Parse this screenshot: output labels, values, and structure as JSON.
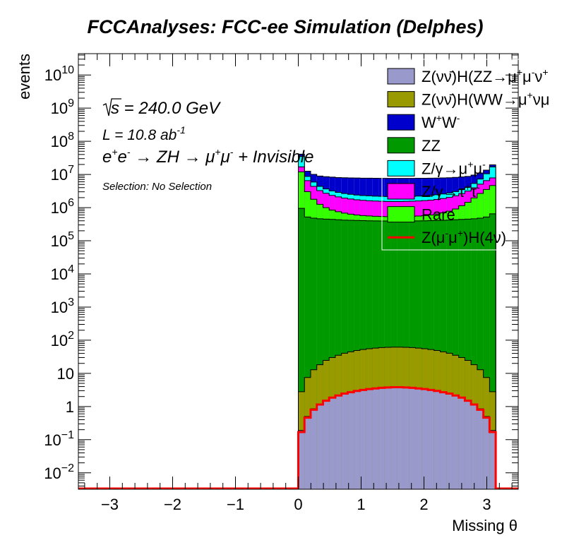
{
  "chart_data": {
    "type": "bar",
    "stacked": true,
    "title": "FCCAnalyses: FCC-ee Simulation (Delphes)",
    "xlabel": "Missing θ",
    "ylabel": "events",
    "yscale": "log",
    "xlim": [
      -3.5,
      3.5
    ],
    "ylim": [
      0.0032,
      44000000000.0
    ],
    "x_ticks": [
      "−3",
      "−2",
      "−1",
      "0",
      "1",
      "2",
      "3"
    ],
    "x_tick_values": [
      -3,
      -2,
      -1,
      0,
      1,
      2,
      3
    ],
    "y_ticks": [
      {
        "base": "10",
        "exp": "−2",
        "value": 0.01
      },
      {
        "base": "10",
        "exp": "−1",
        "value": 0.1
      },
      {
        "base": "1",
        "exp": "",
        "value": 1
      },
      {
        "base": "10",
        "exp": "",
        "value": 10
      },
      {
        "base": "10",
        "exp": "2",
        "value": 100
      },
      {
        "base": "10",
        "exp": "3",
        "value": 1000
      },
      {
        "base": "10",
        "exp": "4",
        "value": 10000
      },
      {
        "base": "10",
        "exp": "5",
        "value": 100000
      },
      {
        "base": "10",
        "exp": "6",
        "value": 1000000
      },
      {
        "base": "10",
        "exp": "7",
        "value": 10000000
      },
      {
        "base": "10",
        "exp": "8",
        "value": 100000000
      },
      {
        "base": "10",
        "exp": "9",
        "value": 1000000000
      },
      {
        "base": "10",
        "exp": "10",
        "value": 10000000000
      }
    ],
    "bins": {
      "start": 0,
      "end": 3.1416,
      "count": 32
    },
    "annotations": {
      "sqrt_s": "√s = 240.0 GeV",
      "sqrt_s_parts": {
        "root": "√",
        "s": "s",
        "rest": " = 240.0 GeV"
      },
      "lumi": {
        "text": "L = 10.8 ab",
        "sup": "-1"
      },
      "process": {
        "p1": "e",
        "s1": "+",
        "p2": "e",
        "s2": "-",
        "p3": " → ZH → μ",
        "s3": "+",
        "p4": "μ",
        "s4": "-",
        "p5": " + Invisible"
      },
      "selection": "Selection: No Selection"
    },
    "legend": {
      "position": "top-right",
      "entries": [
        {
          "label": "Z(νν̄)H(ZZ→μ⁺μ⁻ν⁺",
          "parts": [
            "Z(ν",
            "ν̄",
            ")H(ZZ→μ",
            "+",
            "μ",
            "-",
            "ν",
            "+"
          ],
          "type": "fill",
          "color": "#9999cc"
        },
        {
          "label": "Z(νν̄)H(WW→μ⁺νμ",
          "parts": [
            "Z(ν",
            "ν̄",
            ")H(WW→μ",
            "+",
            "νμ"
          ],
          "type": "fill",
          "color": "#999900"
        },
        {
          "label": "W⁺W⁻",
          "parts": [
            "W",
            "+",
            "W",
            "-"
          ],
          "type": "fill",
          "color": "#0000cc"
        },
        {
          "label": "ZZ",
          "parts": [
            "ZZ"
          ],
          "type": "fill",
          "color": "#009900"
        },
        {
          "label": "Z/γ→μ⁺μ⁻",
          "parts": [
            "Z/γ→μ",
            "+",
            "μ",
            "-"
          ],
          "type": "fill",
          "color": "#00ffff"
        },
        {
          "label": "Z/γ→τ⁺τ⁻",
          "parts": [
            "Z/γ→τ",
            "+",
            "τ",
            "-"
          ],
          "type": "fill",
          "color": "#ff00ff"
        },
        {
          "label": "Rare",
          "parts": [
            "Rare"
          ],
          "type": "fill",
          "color": "#33ff00"
        },
        {
          "label": "Z(μ⁻μ⁺)H(4ν)",
          "parts": [
            "Z(μ",
            "-",
            "μ",
            "+",
            ")H(4ν)"
          ],
          "type": "line",
          "color": "#ff0000"
        }
      ]
    },
    "series": [
      {
        "name": "Z(νν̄)H(ZZ→μ⁺μ⁻ν⁺",
        "color": "#9999cc",
        "values": [
          0.19,
          0.5,
          0.85,
          1.2,
          1.55,
          1.9,
          2.2,
          2.5,
          2.75,
          3.0,
          3.2,
          3.4,
          3.55,
          3.7,
          3.8,
          3.88,
          3.88,
          3.8,
          3.7,
          3.55,
          3.4,
          3.2,
          3.0,
          2.75,
          2.5,
          2.2,
          1.9,
          1.55,
          1.2,
          0.85,
          0.5,
          0.19
        ]
      },
      {
        "name": "Z(νν̄)H(WW→μ⁺νμ",
        "color": "#999900",
        "values": [
          2.6,
          7,
          12,
          17,
          23,
          28,
          33,
          38,
          42,
          46,
          49,
          52,
          54,
          56,
          57,
          58,
          58,
          57,
          56,
          54,
          52,
          49,
          46,
          42,
          38,
          33,
          28,
          23,
          17,
          12,
          7,
          2.6
        ]
      },
      {
        "name": "ZZ",
        "color": "#009900",
        "values": [
          950000,
          520000,
          480000,
          460000,
          450000,
          440000,
          430000,
          420000,
          415000,
          410000,
          405000,
          400000,
          398000,
          396000,
          395000,
          394000,
          394000,
          395000,
          396000,
          398000,
          400000,
          405000,
          410000,
          415000,
          420000,
          430000,
          440000,
          450000,
          460000,
          480000,
          520000,
          650000
        ]
      },
      {
        "name": "Rare",
        "color": "#33ff00",
        "values": [
          11000000,
          2500000,
          1300000,
          800000,
          550000,
          400000,
          320000,
          260000,
          220000,
          190000,
          170000,
          160000,
          150000,
          145000,
          140000,
          138000,
          140000,
          145000,
          150000,
          160000,
          175000,
          195000,
          230000,
          280000,
          360000,
          480000,
          700000,
          1000000,
          1500000,
          2200000,
          3000000,
          4000000
        ]
      },
      {
        "name": "Z/γ→τ⁺τ⁻",
        "color": "#ff00ff",
        "values": [
          5000000,
          3500000,
          2600000,
          2000000,
          1700000,
          1500000,
          1350000,
          1250000,
          1180000,
          1120000,
          1080000,
          1050000,
          1030000,
          1010000,
          1000000,
          990000,
          990000,
          1000000,
          1010000,
          1030000,
          1050000,
          1080000,
          1120000,
          1180000,
          1250000,
          1350000,
          1500000,
          1700000,
          2000000,
          2400000,
          3000000,
          3200000
        ]
      },
      {
        "name": "Z/γ→μ⁺μ⁻",
        "color": "#00ffff",
        "values": [
          18000000,
          2200000,
          1500000,
          1100000,
          950000,
          850000,
          780000,
          730000,
          700000,
          680000,
          660000,
          650000,
          640000,
          630000,
          625000,
          620000,
          620000,
          625000,
          630000,
          640000,
          650000,
          660000,
          680000,
          700000,
          730000,
          780000,
          850000,
          1000000,
          1400000,
          2200000,
          4000000,
          9000000
        ]
      },
      {
        "name": "W⁺W⁻",
        "color": "#0000cc",
        "values": [
          6000000,
          3800000,
          4200000,
          4600000,
          4900000,
          5100000,
          5200000,
          5300000,
          5350000,
          5400000,
          5420000,
          5440000,
          5450000,
          5460000,
          5470000,
          5470000,
          5470000,
          5460000,
          5450000,
          5440000,
          5420000,
          5400000,
          5350000,
          5300000,
          5200000,
          5100000,
          4900000,
          4600000,
          4200000,
          3800000,
          3000000,
          2600000
        ]
      },
      {
        "name": "Z(μ⁻μ⁺)H(4ν)",
        "color": "#ff0000",
        "type": "line",
        "values": [
          0.17,
          0.46,
          0.8,
          1.15,
          1.5,
          1.85,
          2.15,
          2.45,
          2.7,
          2.95,
          3.15,
          3.35,
          3.5,
          3.65,
          3.75,
          3.83,
          3.83,
          3.75,
          3.65,
          3.5,
          3.35,
          3.15,
          2.95,
          2.7,
          2.45,
          2.15,
          1.85,
          1.5,
          1.15,
          0.8,
          0.46,
          0.17
        ]
      }
    ],
    "stack_order": [
      "Z(νν̄)H(ZZ→μ⁺μ⁻ν⁺",
      "Z(νν̄)H(WW→μ⁺νμ",
      "ZZ",
      "Rare",
      "Z/γ→τ⁺τ⁻",
      "Z/γ→μ⁺μ⁻",
      "W⁺W⁻"
    ]
  }
}
